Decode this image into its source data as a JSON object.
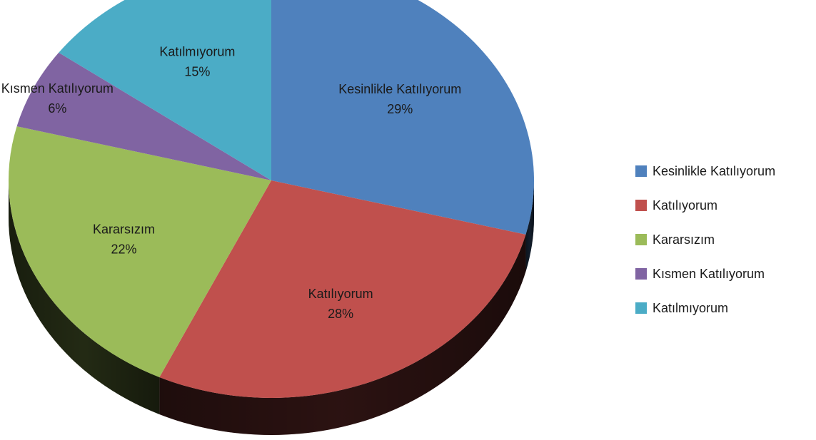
{
  "chart_data": {
    "type": "pie",
    "categories": [
      "Kesinlikle Katılıyorum",
      "Katılıyorum",
      "Kararsızım",
      "Kısmen Katılıyorum",
      "Katılmıyorum"
    ],
    "values": [
      29,
      28,
      22,
      6,
      15
    ],
    "value_labels": [
      "29%",
      "28%",
      "22%",
      "6%",
      "15%"
    ],
    "colors": [
      "#4F81BD",
      "#C0504D",
      "#9BBB59",
      "#8064A2",
      "#4BACC6"
    ],
    "style": "3d-pie",
    "legend_placement": "right",
    "title": ""
  }
}
